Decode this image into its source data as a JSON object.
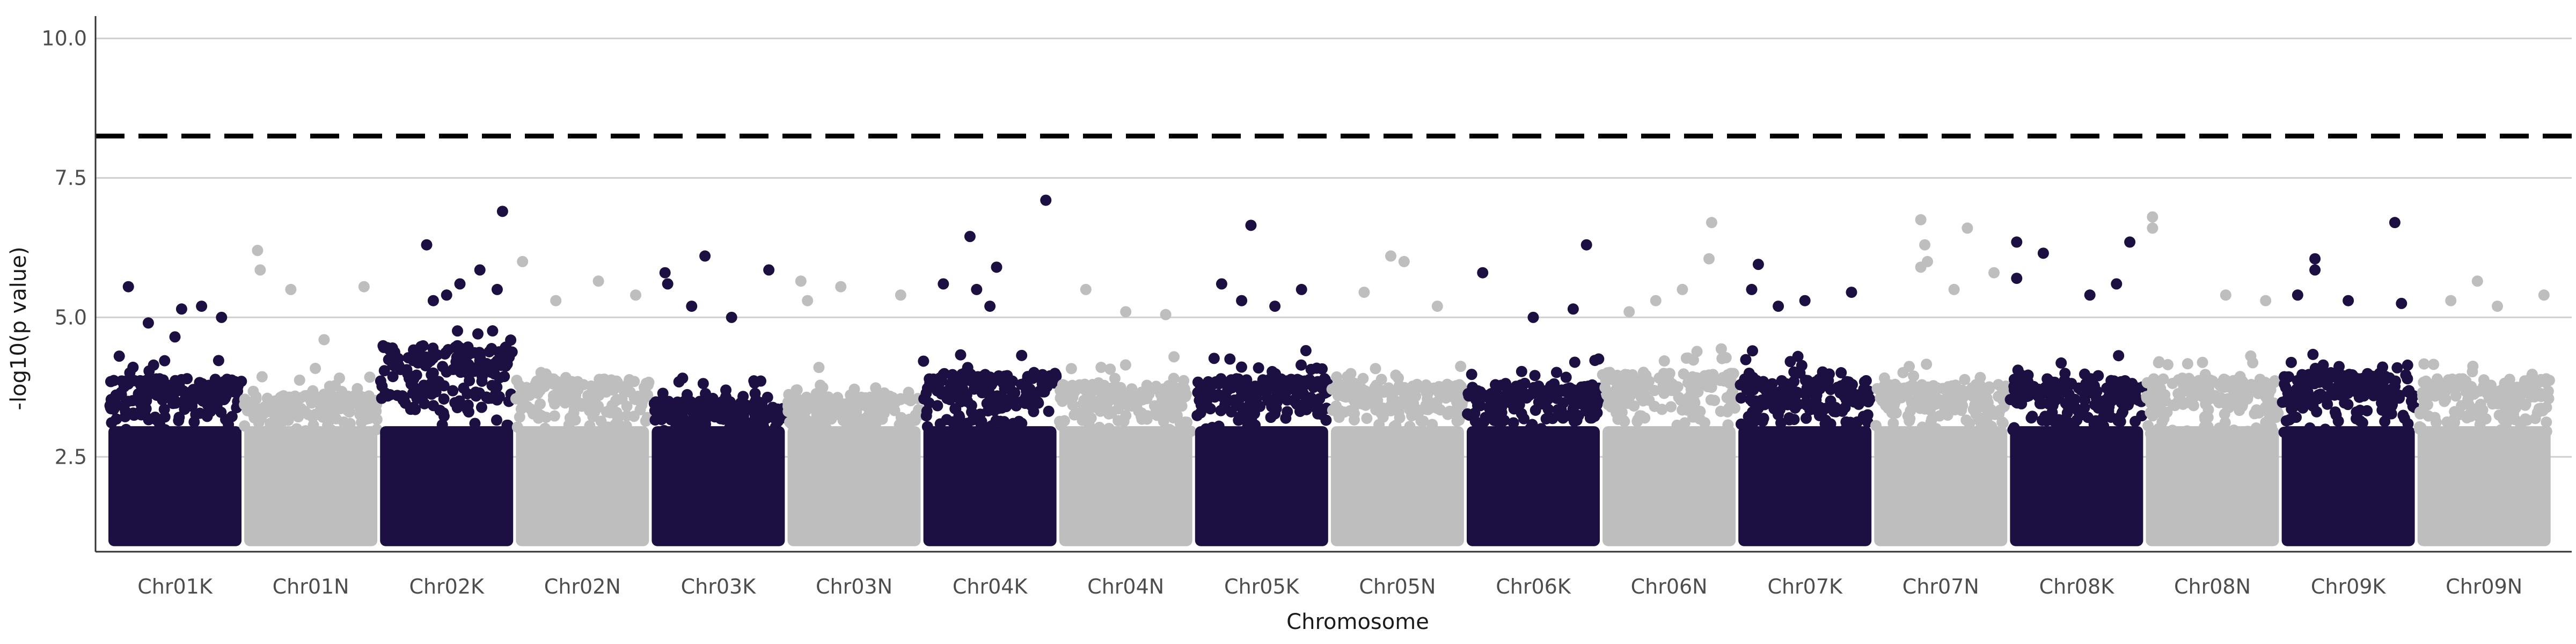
{
  "chart_data": {
    "type": "scatter",
    "title": "",
    "xlabel": "Chromosome",
    "ylabel": "-log10(p value)",
    "ylim": [
      0.8,
      10.4
    ],
    "yticks": [
      2.5,
      5.0,
      7.5,
      10.0
    ],
    "yticks_labels": [
      "2.5",
      "5.0",
      "7.5",
      "10.0"
    ],
    "grid": "horizontal major",
    "legend": "none",
    "threshold": 8.25,
    "threshold_style": "dashed black",
    "colors": {
      "odd": "#1c0f42",
      "even": "#bebebe",
      "threshold": "#000000",
      "grid": "#d0d0d0"
    },
    "categories": [
      "Chr01K",
      "Chr01N",
      "Chr02K",
      "Chr02N",
      "Chr03K",
      "Chr03N",
      "Chr04K",
      "Chr04N",
      "Chr05K",
      "Chr05N",
      "Chr06K",
      "Chr06N",
      "Chr07K",
      "Chr07N",
      "Chr08K",
      "Chr08N",
      "Chr09K",
      "Chr09N"
    ],
    "series": [
      {
        "values": [
          [
            0.15,
            5.55
          ],
          [
            0.3,
            4.9
          ],
          [
            0.55,
            5.15
          ],
          [
            0.7,
            5.2
          ],
          [
            0.85,
            5.0
          ],
          [
            0.5,
            4.65
          ]
        ]
      },
      {
        "values": [
          [
            0.1,
            6.2
          ],
          [
            0.12,
            5.85
          ],
          [
            0.35,
            5.5
          ],
          [
            0.9,
            5.55
          ],
          [
            0.6,
            4.6
          ]
        ]
      },
      {
        "values": [
          [
            0.35,
            6.3
          ],
          [
            0.92,
            6.9
          ],
          [
            0.75,
            5.85
          ],
          [
            0.6,
            5.6
          ],
          [
            0.5,
            5.4
          ],
          [
            0.88,
            5.5
          ],
          [
            0.4,
            5.3
          ]
        ]
      },
      {
        "values": [
          [
            0.05,
            6.0
          ],
          [
            0.62,
            5.65
          ],
          [
            0.9,
            5.4
          ],
          [
            0.3,
            5.3
          ]
        ]
      },
      {
        "values": [
          [
            0.1,
            5.8
          ],
          [
            0.12,
            5.6
          ],
          [
            0.4,
            6.1
          ],
          [
            0.88,
            5.85
          ],
          [
            0.3,
            5.2
          ],
          [
            0.6,
            5.0
          ]
        ]
      },
      {
        "values": [
          [
            0.1,
            5.65
          ],
          [
            0.15,
            5.3
          ],
          [
            0.4,
            5.55
          ],
          [
            0.85,
            5.4
          ]
        ]
      },
      {
        "values": [
          [
            0.35,
            6.45
          ],
          [
            0.55,
            5.9
          ],
          [
            0.92,
            7.1
          ],
          [
            0.5,
            5.2
          ],
          [
            0.15,
            5.6
          ],
          [
            0.4,
            5.5
          ]
        ]
      },
      {
        "values": [
          [
            0.2,
            5.5
          ],
          [
            0.5,
            5.1
          ],
          [
            0.8,
            5.05
          ]
        ]
      },
      {
        "values": [
          [
            0.2,
            5.6
          ],
          [
            0.42,
            6.65
          ],
          [
            0.8,
            5.5
          ],
          [
            0.35,
            5.3
          ],
          [
            0.6,
            5.2
          ]
        ]
      },
      {
        "values": [
          [
            0.45,
            6.1
          ],
          [
            0.55,
            6.0
          ],
          [
            0.25,
            5.45
          ],
          [
            0.8,
            5.2
          ]
        ]
      },
      {
        "values": [
          [
            0.12,
            5.8
          ],
          [
            0.9,
            6.3
          ],
          [
            0.8,
            5.15
          ],
          [
            0.5,
            5.0
          ]
        ]
      },
      {
        "values": [
          [
            0.82,
            6.7
          ],
          [
            0.8,
            6.05
          ],
          [
            0.6,
            5.5
          ],
          [
            0.4,
            5.3
          ],
          [
            0.2,
            5.1
          ]
        ]
      },
      {
        "values": [
          [
            0.15,
            5.95
          ],
          [
            0.1,
            5.5
          ],
          [
            0.5,
            5.3
          ],
          [
            0.85,
            5.45
          ],
          [
            0.3,
            5.2
          ]
        ]
      },
      {
        "values": [
          [
            0.35,
            6.75
          ],
          [
            0.38,
            6.3
          ],
          [
            0.4,
            6.0
          ],
          [
            0.7,
            6.6
          ],
          [
            0.35,
            5.9
          ],
          [
            0.9,
            5.8
          ],
          [
            0.6,
            5.5
          ]
        ]
      },
      {
        "values": [
          [
            0.05,
            6.35
          ],
          [
            0.05,
            5.7
          ],
          [
            0.25,
            6.15
          ],
          [
            0.9,
            6.35
          ],
          [
            0.8,
            5.6
          ],
          [
            0.6,
            5.4
          ]
        ]
      },
      {
        "values": [
          [
            0.05,
            6.8
          ],
          [
            0.05,
            6.6
          ],
          [
            0.6,
            5.4
          ],
          [
            0.9,
            5.3
          ]
        ]
      },
      {
        "values": [
          [
            0.25,
            6.05
          ],
          [
            0.25,
            5.85
          ],
          [
            0.85,
            6.7
          ],
          [
            0.12,
            5.4
          ],
          [
            0.9,
            5.25
          ],
          [
            0.5,
            5.3
          ]
        ]
      },
      {
        "values": [
          [
            0.45,
            5.65
          ],
          [
            0.25,
            5.3
          ],
          [
            0.95,
            5.4
          ],
          [
            0.6,
            5.2
          ]
        ]
      }
    ]
  }
}
